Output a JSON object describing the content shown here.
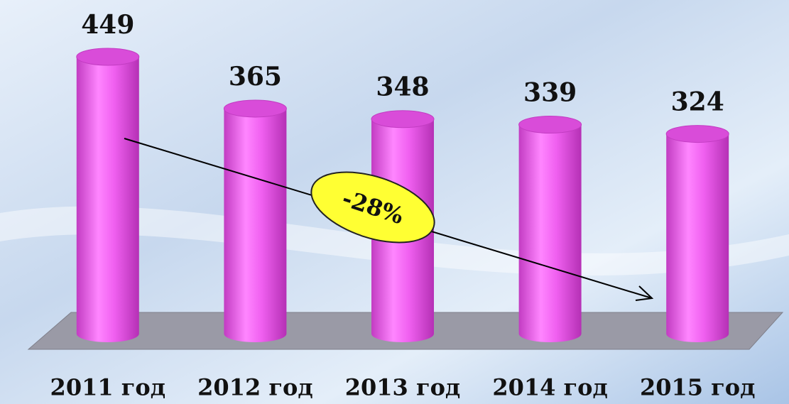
{
  "chart_data": {
    "type": "bar",
    "categories": [
      "2011 год",
      "2012 год",
      "2013 год",
      "2014 год",
      "2015 год"
    ],
    "values": [
      449,
      365,
      348,
      339,
      324
    ],
    "color": "#ee5cee",
    "annotation": "-28%"
  }
}
